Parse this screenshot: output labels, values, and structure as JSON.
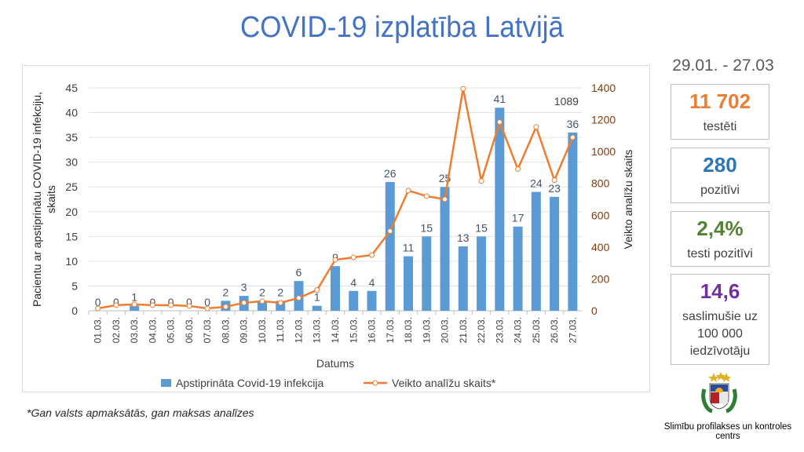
{
  "title": "COVID-19 izplatība Latvijā",
  "period": "29.01. - 27.03",
  "stats": [
    {
      "value": "11 702",
      "label": "testēti",
      "color": "#ed7d31"
    },
    {
      "value": "280",
      "label": "pozitīvi",
      "color": "#2e75b6"
    },
    {
      "value": "2,4%",
      "label": "testi pozitīvi",
      "color": "#548235"
    },
    {
      "value": "14,6",
      "label": "saslimušie uz 100 000 iedzīvotāju",
      "color": "#7030a0"
    }
  ],
  "footnote": "*Gan valsts apmaksātās, gan maksas analīzes",
  "organization": "Slimību profilakses un kontroles centrs",
  "chart_data": {
    "type": "bar+line",
    "categories": [
      "01.03.",
      "02.03.",
      "03.03.",
      "04.03.",
      "05.03.",
      "06.03.",
      "07.03.",
      "08.03.",
      "09.03.",
      "10.03.",
      "11.03.",
      "12.03.",
      "13.03.",
      "14.03.",
      "15.03.",
      "16.03.",
      "17.03.",
      "18.03.",
      "19.03.",
      "20.03.",
      "21.03.",
      "22.03.",
      "23.03.",
      "24.03.",
      "25.03.",
      "26.03.",
      "27.03."
    ],
    "series": [
      {
        "name": "Apstiprināta Covid-19 infekcija",
        "type": "bar",
        "axis": "left",
        "color": "#5b9bd5",
        "values": [
          0,
          0,
          1,
          0,
          0,
          0,
          0,
          2,
          3,
          2,
          2,
          6,
          1,
          9,
          4,
          4,
          26,
          11,
          15,
          25,
          13,
          15,
          41,
          17,
          24,
          23,
          36
        ]
      },
      {
        "name": "Veikto analīžu skaits*",
        "type": "line",
        "axis": "right",
        "color": "#ed7d31",
        "values": [
          15,
          35,
          40,
          35,
          35,
          30,
          15,
          25,
          50,
          60,
          50,
          80,
          130,
          320,
          335,
          350,
          500,
          755,
          720,
          700,
          1395,
          815,
          1185,
          890,
          1155,
          820,
          1089
        ]
      }
    ],
    "line_label": "1089",
    "xlabel": "Datums",
    "ylabel": "Pacientu ar apstiprinātu COVID-19 infekciju, skaits",
    "y2label": "Veikto analīžu skaits",
    "ylim": [
      0,
      45
    ],
    "yticks": [
      0,
      5,
      10,
      15,
      20,
      25,
      30,
      35,
      40,
      45
    ],
    "y2lim": [
      0,
      1400
    ],
    "y2ticks": [
      0,
      200,
      400,
      600,
      800,
      1000,
      1200,
      1400
    ],
    "grid": true,
    "legend": "bottom"
  }
}
